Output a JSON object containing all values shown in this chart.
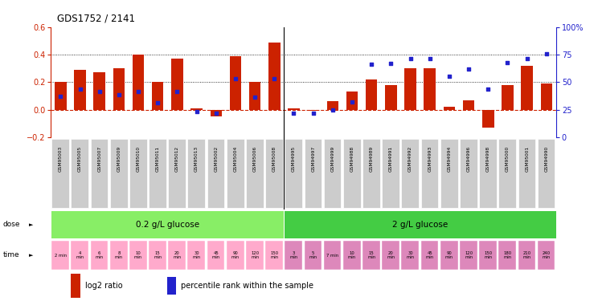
{
  "title": "GDS1752 / 2141",
  "samples": [
    "GSM95003",
    "GSM95005",
    "GSM95007",
    "GSM95009",
    "GSM95010",
    "GSM95011",
    "GSM95012",
    "GSM95013",
    "GSM95002",
    "GSM95004",
    "GSM95006",
    "GSM95008",
    "GSM94995",
    "GSM94997",
    "GSM94999",
    "GSM94988",
    "GSM94989",
    "GSM94991",
    "GSM94992",
    "GSM94993",
    "GSM94994",
    "GSM94996",
    "GSM94998",
    "GSM95000",
    "GSM95001",
    "GSM94990"
  ],
  "log2_ratio": [
    0.2,
    0.29,
    0.27,
    0.3,
    0.4,
    0.2,
    0.37,
    0.01,
    -0.05,
    0.39,
    0.2,
    0.49,
    0.01,
    -0.01,
    0.06,
    0.13,
    0.22,
    0.18,
    0.3,
    0.3,
    0.02,
    0.07,
    -0.13,
    0.18,
    0.32,
    0.19
  ],
  "percentile_rank": [
    37.5,
    43.5,
    41.5,
    38.5,
    41.5,
    31.5,
    41.5,
    23.5,
    21.5,
    53.5,
    36.5,
    53.5,
    21.5,
    21.5,
    24.5,
    32.0,
    66.0,
    67.0,
    71.5,
    71.5,
    55.5,
    62.0,
    43.5,
    68.0,
    71.5,
    75.5
  ],
  "dose_labels": [
    "0.2 g/L glucose",
    "2 g/L glucose"
  ],
  "dose_split": 12,
  "time_labels": [
    "2 min",
    "4\nmin",
    "6\nmin",
    "8\nmin",
    "10\nmin",
    "15\nmin",
    "20\nmin",
    "30\nmin",
    "45\nmin",
    "90\nmin",
    "120\nmin",
    "150\nmin",
    "3\nmin",
    "5\nmin",
    "7 min",
    "10\nmin",
    "15\nmin",
    "20\nmin",
    "30\nmin",
    "45\nmin",
    "90\nmin",
    "120\nmin",
    "150\nmin",
    "180\nmin",
    "210\nmin",
    "240\nmin"
  ],
  "ylim_left": [
    -0.2,
    0.6
  ],
  "ylim_right": [
    0,
    100
  ],
  "bar_color": "#cc2200",
  "dot_color": "#2222cc",
  "hline_color": "#cc2200",
  "dose_color_low": "#88ee66",
  "dose_color_high": "#44cc44",
  "time_color_low": "#ffaacc",
  "time_color_high": "#dd88bb",
  "sample_bg_color": "#cccccc",
  "background_color": "#ffffff"
}
